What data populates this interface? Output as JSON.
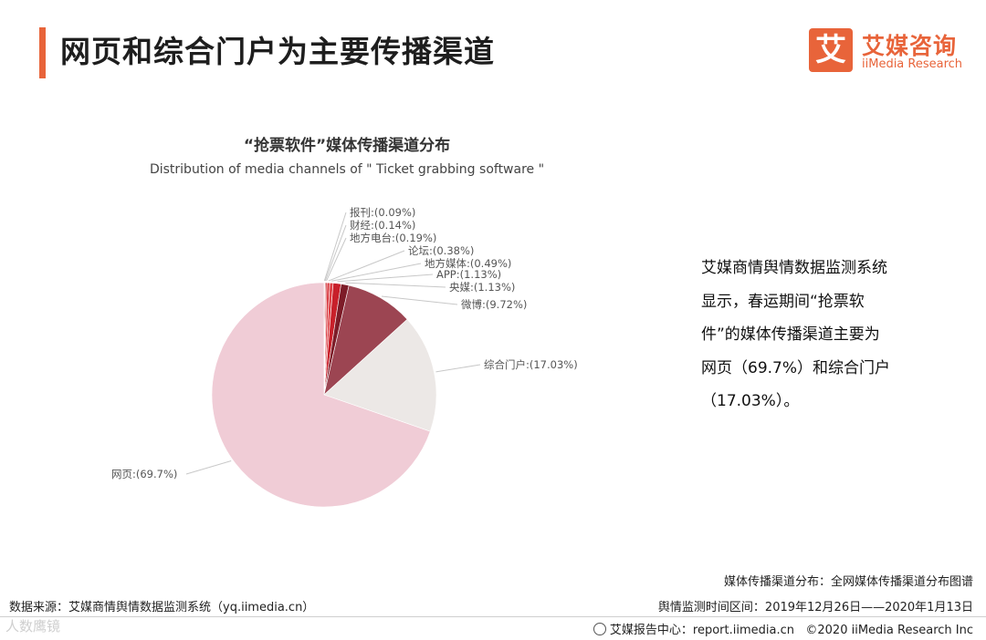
{
  "header": {
    "title": "网页和综合门户为主要传播渠道",
    "logo_cn": "艾媒咨询",
    "logo_mark": "艾",
    "logo_en": "iiMedia Research",
    "accent_color": "#e8643a"
  },
  "chart_data": {
    "type": "pie",
    "title": "“抢票软件”媒体传播渠道分布",
    "subtitle": "Distribution of media channels of \" Ticket grabbing software \"",
    "slices": [
      {
        "name": "报刊",
        "label": "报刊:(0.09%)",
        "value": 0.09,
        "color": "#b01820"
      },
      {
        "name": "财经",
        "label": "财经:(0.14%)",
        "value": 0.14,
        "color": "#c02028"
      },
      {
        "name": "地方电台",
        "label": "地方电台:(0.19%)",
        "value": 0.19,
        "color": "#d02a30"
      },
      {
        "name": "论坛",
        "label": "论坛:(0.38%)",
        "value": 0.38,
        "color": "#d8353b"
      },
      {
        "name": "地方媒体",
        "label": "地方媒体:(0.49%)",
        "value": 0.49,
        "color": "#dd4045"
      },
      {
        "name": "APP",
        "label": "APP:(1.13%)",
        "value": 1.13,
        "color": "#c8202a"
      },
      {
        "name": "央媒",
        "label": "央媒:(1.13%)",
        "value": 1.13,
        "color": "#7d1c28"
      },
      {
        "name": "微博",
        "label": "微博:(9.72%)",
        "value": 9.72,
        "color": "#9c4552"
      },
      {
        "name": "综合门户",
        "label": "综合门户:(17.03%)",
        "value": 17.03,
        "color": "#ece8e6"
      },
      {
        "name": "网页",
        "label": "网页:(69.7%)",
        "value": 69.7,
        "color": "#f0ccd6"
      }
    ]
  },
  "description": {
    "lines": [
      "艾媒商情舆情数据监测系统",
      "显示，春运期间“抢票软",
      "件”的媒体传播渠道主要为",
      "网页（69.7%）和综合门户",
      "（17.03%）。"
    ]
  },
  "footer": {
    "channel_note": "媒体传播渠道分布：全网媒体传播渠道分布图谱",
    "period_note": "舆情监测时间区间：2019年12月26日——2020年1月13日",
    "source": "数据来源：艾媒商情舆情数据监测系统（yq.iimedia.cn）",
    "report_center": "艾媒报告中心：report.iimedia.cn",
    "copyright": "©2020 iiMedia Research Inc",
    "watermark": "人数鹰镜"
  }
}
